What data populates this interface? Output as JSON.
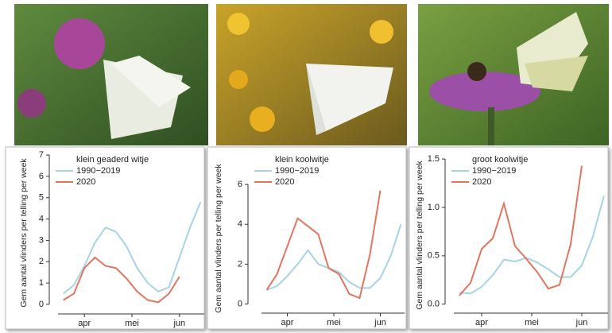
{
  "chart_data": [
    {
      "type": "line",
      "title": "klein geaderd witje",
      "ylabel": "Gem aantal vlinders per telling per week",
      "x": [
        0,
        1,
        2,
        3,
        4,
        5,
        6,
        7,
        8,
        9,
        10,
        11,
        12,
        13
      ],
      "xlim": [
        -0.5,
        13.5
      ],
      "xticks": [
        {
          "value": 2,
          "label": "apr"
        },
        {
          "value": 6.5,
          "label": "mei"
        },
        {
          "value": 11,
          "label": "jun"
        }
      ],
      "ylim": [
        -0.3,
        7.3
      ],
      "yticks": [
        0,
        1,
        2,
        3,
        4,
        5,
        6,
        7
      ],
      "series": [
        {
          "name": "1990−2019",
          "color": "#a6d3e6",
          "values": [
            0.5,
            0.9,
            1.8,
            2.9,
            3.6,
            3.4,
            2.7,
            1.7,
            1.0,
            0.6,
            0.8,
            2.2,
            3.6,
            4.8
          ]
        },
        {
          "name": "2020",
          "color": "#e07560",
          "values": [
            0.2,
            0.5,
            1.7,
            2.2,
            1.8,
            1.7,
            1.2,
            0.6,
            0.2,
            0.1,
            0.5,
            1.3,
            null,
            null
          ]
        }
      ]
    },
    {
      "type": "line",
      "title": "klein koolwitje",
      "ylabel": "Gem aantal vlinders per telling per week",
      "x": [
        0,
        1,
        2,
        3,
        4,
        5,
        6,
        7,
        8,
        9,
        10,
        11,
        12,
        13
      ],
      "xlim": [
        -0.5,
        13.5
      ],
      "xticks": [
        {
          "value": 2,
          "label": "apr"
        },
        {
          "value": 6.5,
          "label": "mei"
        },
        {
          "value": 11,
          "label": "jun"
        }
      ],
      "ylim": [
        -0.3,
        7.2
      ],
      "yticks": [
        0,
        2,
        4,
        6
      ],
      "series": [
        {
          "name": "1990−2019",
          "color": "#a6d3e6",
          "values": [
            0.7,
            0.9,
            1.4,
            2.0,
            2.7,
            2.0,
            1.8,
            1.6,
            1.1,
            0.8,
            0.8,
            1.3,
            2.4,
            4.0
          ]
        },
        {
          "name": "2020",
          "color": "#e07560",
          "values": [
            0.7,
            1.5,
            2.9,
            4.3,
            3.9,
            3.5,
            1.8,
            1.5,
            0.5,
            0.3,
            2.5,
            5.7,
            null,
            null
          ]
        }
      ]
    },
    {
      "type": "line",
      "title": "groot koolwitje",
      "ylabel": "Gem aantal vlinders per telling per week",
      "x": [
        0,
        1,
        2,
        3,
        4,
        5,
        6,
        7,
        8,
        9,
        10,
        11,
        12,
        13
      ],
      "xlim": [
        -0.5,
        13.5
      ],
      "xticks": [
        {
          "value": 2,
          "label": "apr"
        },
        {
          "value": 6.5,
          "label": "mei"
        },
        {
          "value": 11,
          "label": "jun"
        }
      ],
      "ylim": [
        -0.06,
        1.55
      ],
      "yticks": [
        {
          "value": 0,
          "label": "0.0"
        },
        0.5,
        {
          "value": 1,
          "label": "1.0"
        },
        1.5
      ],
      "series": [
        {
          "name": "1990−2019",
          "color": "#a6d3e6",
          "values": [
            0.12,
            0.11,
            0.18,
            0.3,
            0.46,
            0.44,
            0.48,
            0.43,
            0.36,
            0.28,
            0.28,
            0.4,
            0.7,
            1.12
          ]
        },
        {
          "name": "2020",
          "color": "#e07560",
          "values": [
            0.09,
            0.22,
            0.57,
            0.68,
            1.04,
            0.6,
            0.47,
            0.33,
            0.16,
            0.2,
            0.62,
            1.43,
            null,
            null
          ]
        }
      ]
    }
  ]
}
